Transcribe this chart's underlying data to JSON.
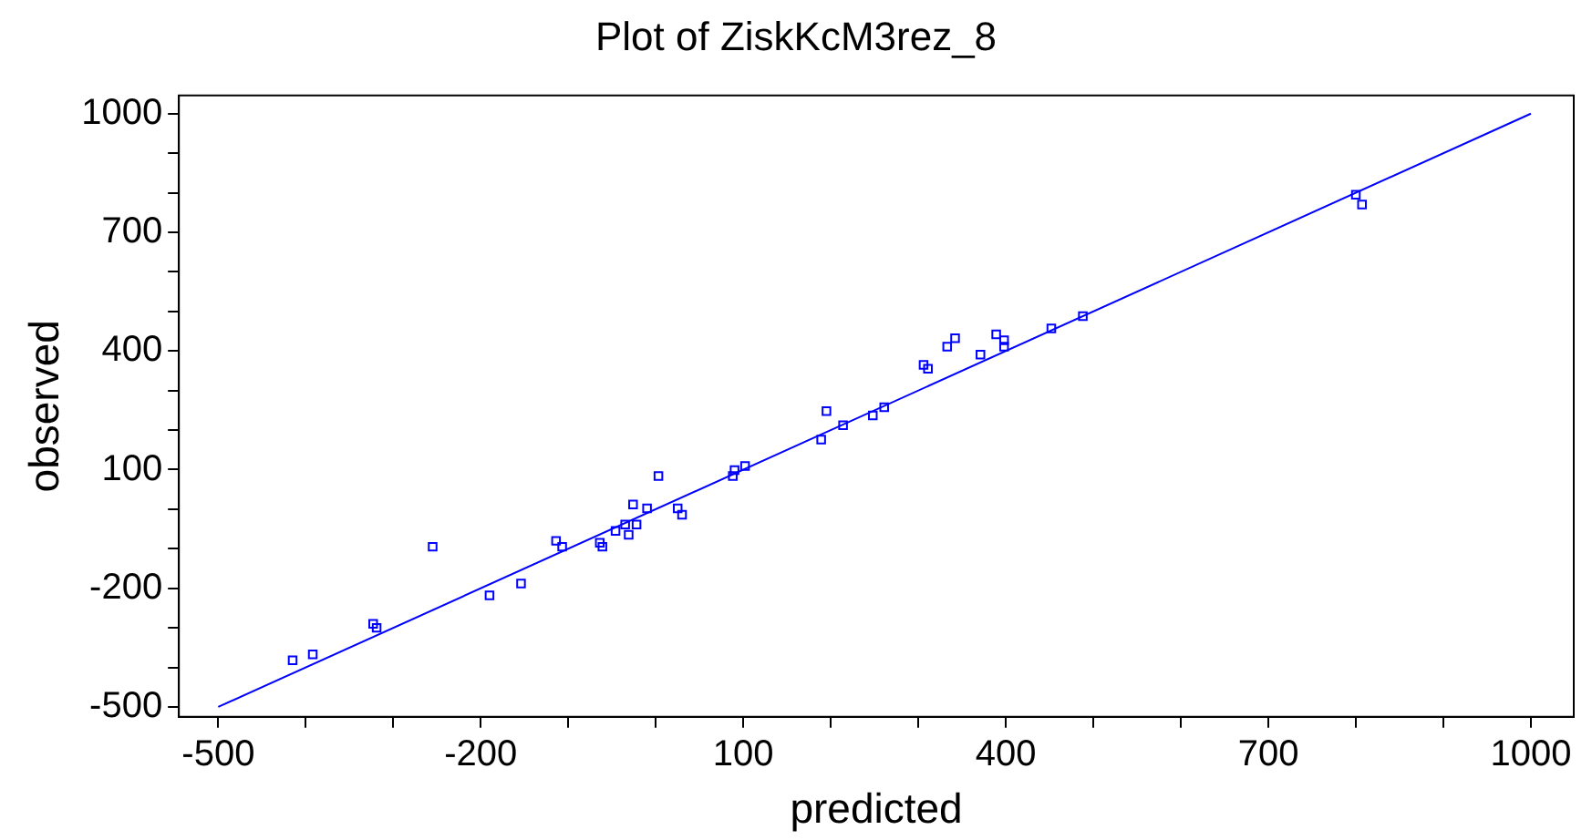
{
  "chart_data": {
    "type": "scatter",
    "title": "Plot of ZiskKcM3rez_8",
    "xlabel": "predicted",
    "ylabel": "observed",
    "xlim": [
      -545,
      1049
    ],
    "ylim": [
      -525,
      1046
    ],
    "xticks": [
      -500,
      {
        "value": -400,
        "label": null
      },
      {
        "value": -300,
        "label": null
      },
      -200,
      {
        "value": -100,
        "label": null
      },
      {
        "value": 0,
        "label": null
      },
      100,
      {
        "value": 200,
        "label": null
      },
      {
        "value": 300,
        "label": null
      },
      400,
      {
        "value": 500,
        "label": null
      },
      {
        "value": 600,
        "label": null
      },
      700,
      {
        "value": 800,
        "label": null
      },
      {
        "value": 900,
        "label": null
      },
      1000
    ],
    "yticks": [
      -500,
      {
        "value": -400,
        "label": null
      },
      {
        "value": -300,
        "label": null
      },
      -200,
      {
        "value": -100,
        "label": null
      },
      {
        "value": 0,
        "label": null
      },
      100,
      {
        "value": 200,
        "label": null
      },
      {
        "value": 300,
        "label": null
      },
      400,
      {
        "value": 500,
        "label": null
      },
      {
        "value": 600,
        "label": null
      },
      700,
      {
        "value": 800,
        "label": null
      },
      {
        "value": 900,
        "label": null
      },
      1000
    ],
    "grid": false,
    "legend": false,
    "marker": "square",
    "series": [
      {
        "color": "#0000ff",
        "x": [
          -415,
          -392,
          -323,
          -319,
          -255,
          -190,
          -154,
          -114,
          -107,
          -64,
          -61,
          -46,
          -35,
          -31,
          -26,
          -22,
          -10,
          3,
          25,
          30,
          88,
          90,
          102,
          189,
          195,
          214,
          248,
          261,
          306,
          311,
          333,
          342,
          371,
          389,
          398,
          398,
          452,
          488,
          800,
          807
        ],
        "values": [
          -382,
          -367,
          -290,
          -300,
          -95,
          -218,
          -188,
          -80,
          -95,
          -85,
          -95,
          -55,
          -39,
          -65,
          12,
          -39,
          2,
          84,
          2,
          -14,
          84,
          99,
          109,
          176,
          248,
          212,
          237,
          258,
          365,
          355,
          411,
          432,
          391,
          442,
          411,
          427,
          457,
          488,
          795,
          770
        ]
      },
      {
        "type": "line",
        "marker": "none",
        "color": "#0000ff",
        "x": [
          -500,
          1000
        ],
        "values": [
          -500,
          1000
        ]
      }
    ]
  }
}
